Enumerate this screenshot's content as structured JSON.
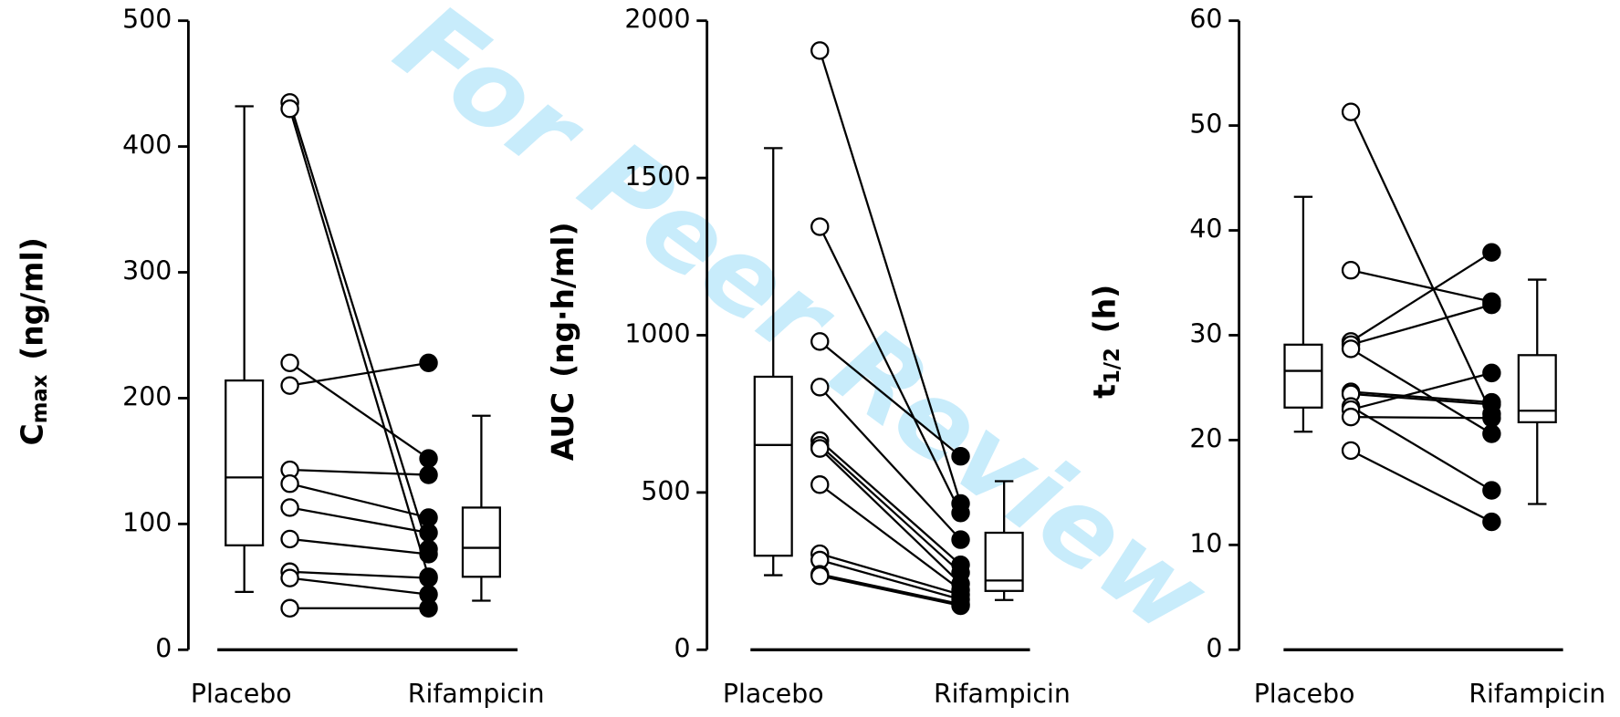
{
  "watermark": "For Peer Review",
  "chart_data": [
    {
      "type": "box",
      "y_label": {
        "text": "C",
        "subscript": "max",
        "unit": "(ng/ml)"
      },
      "categories": [
        "Placebo",
        "Rifampicin"
      ],
      "ylim": [
        0,
        500
      ],
      "yticks": [
        0,
        100,
        200,
        300,
        400,
        500
      ],
      "boxes": [
        {
          "whisker_low": 46,
          "q1": 83,
          "median": 137,
          "q3": 214,
          "whisker_high": 432
        },
        {
          "whisker_low": 39,
          "q1": 58,
          "median": 81,
          "q3": 113,
          "whisker_high": 186
        }
      ],
      "series": [
        {
          "name": "Placebo",
          "color": "#ffffff",
          "values": [
            435,
            430,
            228,
            210,
            143,
            132,
            113,
            88,
            62,
            57,
            33
          ]
        },
        {
          "name": "Rifampicin",
          "color": "#000000",
          "values": [
            80,
            58,
            152,
            228,
            139,
            105,
            93,
            76,
            57,
            44,
            33
          ]
        }
      ]
    },
    {
      "type": "box",
      "y_label": {
        "text": "AUC",
        "unit": "(ng·h/ml)"
      },
      "categories": [
        "Placebo",
        "Rifampicin"
      ],
      "ylim": [
        0,
        2000
      ],
      "yticks": [
        0,
        500,
        1000,
        1500,
        2000
      ],
      "boxes": [
        {
          "whisker_low": 237,
          "q1": 299,
          "median": 651,
          "q3": 868,
          "whisker_high": 1595
        },
        {
          "whisker_low": 158,
          "q1": 187,
          "median": 220,
          "q3": 372,
          "whisker_high": 536
        }
      ],
      "series": [
        {
          "name": "Placebo",
          "color": "#ffffff",
          "values": [
            1905,
            1345,
            980,
            835,
            665,
            650,
            640,
            525,
            305,
            285,
            240,
            235
          ]
        },
        {
          "name": "Rifampicin",
          "color": "#000000",
          "values": [
            465,
            435,
            615,
            350,
            270,
            245,
            210,
            190,
            175,
            160,
            145,
            140
          ]
        }
      ]
    },
    {
      "type": "box",
      "y_label": {
        "text": "t",
        "subscript": "1/2",
        "unit": "(h)"
      },
      "categories": [
        "Placebo",
        "Rifampicin"
      ],
      "ylim": [
        0,
        60
      ],
      "yticks": [
        0,
        10,
        20,
        30,
        40,
        50,
        60
      ],
      "boxes": [
        {
          "whisker_low": 20.8,
          "q1": 23.1,
          "median": 26.6,
          "q3": 29.1,
          "whisker_high": 43.2
        },
        {
          "whisker_low": 13.9,
          "q1": 21.7,
          "median": 22.8,
          "q3": 28.1,
          "whisker_high": 35.3
        }
      ],
      "series": [
        {
          "name": "Placebo",
          "color": "#ffffff",
          "values": [
            51.3,
            36.2,
            29.4,
            29.1,
            28.7,
            24.6,
            24.4,
            23.2,
            22.9,
            22.2,
            19.0
          ]
        },
        {
          "name": "Rifampicin",
          "color": "#000000",
          "values": [
            22.5,
            33.2,
            37.9,
            32.9,
            20.6,
            23.6,
            23.4,
            15.2,
            26.4,
            22.1,
            12.2
          ]
        }
      ]
    }
  ]
}
